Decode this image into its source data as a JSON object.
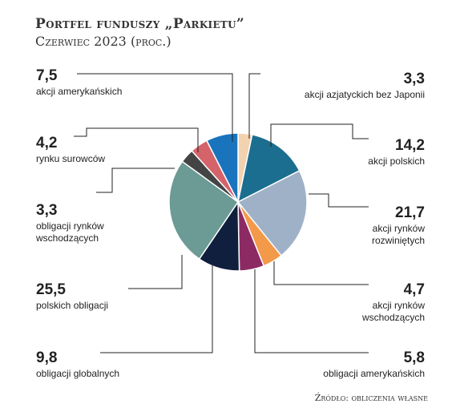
{
  "chart_data": {
    "type": "pie",
    "title": "Portfel funduszy „Parkietu”",
    "subtitle": "Czerwiec 2023 (proc.)",
    "source": "Źródło: obliczenia własne",
    "slices": [
      {
        "value": "3,3",
        "label_lines": [
          "akcji azjatyckich bez Japonii"
        ],
        "color": "#f3d2b0"
      },
      {
        "value": "14,2",
        "label_lines": [
          "akcji polskich"
        ],
        "color": "#1b6e8f"
      },
      {
        "value": "21,7",
        "label_lines": [
          "akcji rynków",
          "rozwiniętych"
        ],
        "color": "#9fb1c6"
      },
      {
        "value": "4,7",
        "label_lines": [
          "akcji rynków",
          "wschodzących"
        ],
        "color": "#f2994a"
      },
      {
        "value": "5,8",
        "label_lines": [
          "obligacji amerykańskich"
        ],
        "color": "#8c2a63"
      },
      {
        "value": "9,8",
        "label_lines": [
          "obligacji globalnych"
        ],
        "color": "#0f1f3d"
      },
      {
        "value": "25,5",
        "label_lines": [
          "polskich obligacji"
        ],
        "color": "#6c9a95"
      },
      {
        "value": "3,3",
        "label_lines": [
          "obligacji rynków",
          "wschodzących"
        ],
        "color": "#444444"
      },
      {
        "value": "4,2",
        "label_lines": [
          "rynku surowców"
        ],
        "color": "#d4636a"
      },
      {
        "value": "7,5",
        "label_lines": [
          "akcji amerykańskich"
        ],
        "color": "#1a74bd"
      }
    ]
  }
}
